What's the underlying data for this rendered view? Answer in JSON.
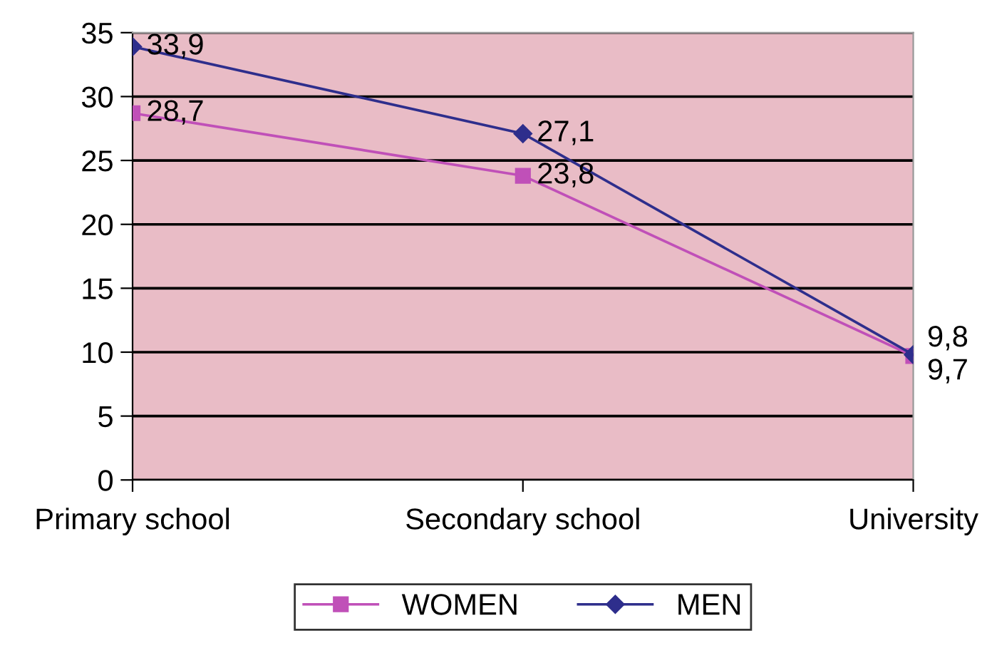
{
  "chart_data": {
    "type": "line",
    "categories": [
      "Primary school",
      "Secondary school",
      "University"
    ],
    "series": [
      {
        "name": "WOMEN",
        "color": "#c050b8",
        "marker": "square",
        "values": [
          28.7,
          23.8,
          9.7
        ],
        "value_labels": [
          "28,7",
          "23,8",
          "9,7"
        ]
      },
      {
        "name": "MEN",
        "color": "#2e2e8c",
        "marker": "diamond",
        "values": [
          33.9,
          27.1,
          9.8
        ],
        "value_labels": [
          "33,9",
          "27,1",
          "9,8"
        ]
      }
    ],
    "ylim": [
      0,
      35
    ],
    "yticks": [
      0,
      5,
      10,
      15,
      20,
      25,
      30,
      35
    ],
    "grid": "y",
    "legend": "bottom"
  }
}
